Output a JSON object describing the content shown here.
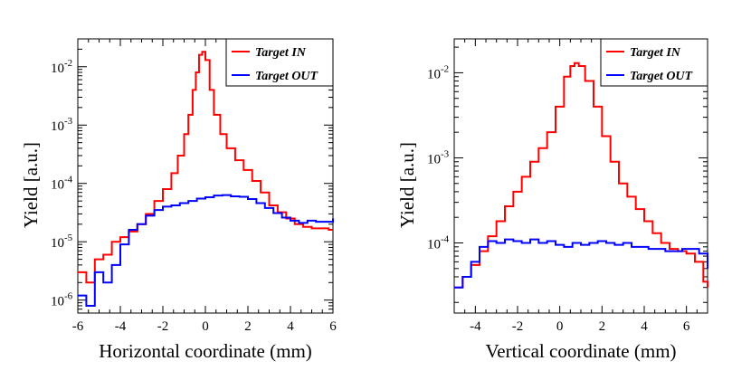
{
  "chart_data": [
    {
      "type": "line",
      "style": "step-histogram",
      "title": "",
      "xlabel": "Horizontal coordinate (mm)",
      "ylabel": "Yield [a.u.]",
      "xlim": [
        -6,
        6
      ],
      "ylim": [
        6e-07,
        0.03
      ],
      "yscale": "log",
      "xticks": [
        -6,
        -4,
        -2,
        0,
        2,
        4,
        6
      ],
      "yticks": [
        {
          "value": 1e-06,
          "base": "10",
          "exp": "-6"
        },
        {
          "value": 1e-05,
          "base": "10",
          "exp": "-5"
        },
        {
          "value": 0.0001,
          "base": "10",
          "exp": "-4"
        },
        {
          "value": 0.001,
          "base": "10",
          "exp": "-3"
        },
        {
          "value": 0.01,
          "base": "10",
          "exp": "-2"
        }
      ],
      "legend_position": "top-right",
      "series": [
        {
          "name": "Target IN",
          "color": "#ff0000",
          "x": [
            -6.0,
            -5.6,
            -5.2,
            -4.8,
            -4.4,
            -4.0,
            -3.6,
            -3.2,
            -2.8,
            -2.4,
            -2.0,
            -1.6,
            -1.3,
            -1.0,
            -0.8,
            -0.6,
            -0.45,
            -0.3,
            -0.15,
            0.0,
            0.2,
            0.4,
            0.7,
            1.0,
            1.4,
            1.8,
            2.2,
            2.6,
            3.0,
            3.4,
            3.8,
            4.2,
            4.6,
            5.0,
            5.4,
            5.8,
            6.0
          ],
          "y": [
            3e-06,
            2e-06,
            5e-06,
            6e-06,
            1e-05,
            1.2e-05,
            1.5e-05,
            2e-05,
            3e-05,
            5e-05,
            8e-05,
            0.00015,
            0.0003,
            0.0007,
            0.0015,
            0.004,
            0.008,
            0.016,
            0.018,
            0.013,
            0.004,
            0.0015,
            0.0007,
            0.0004,
            0.00025,
            0.00017,
            0.00011,
            7e-05,
            4.2e-05,
            3.2e-05,
            2.5e-05,
            2e-05,
            1.8e-05,
            1.7e-05,
            1.7e-05,
            1.6e-05,
            1.6e-05
          ]
        },
        {
          "name": "Target OUT",
          "color": "#0000ff",
          "x": [
            -6.0,
            -5.6,
            -5.2,
            -4.8,
            -4.4,
            -4.0,
            -3.6,
            -3.2,
            -2.8,
            -2.4,
            -2.0,
            -1.6,
            -1.2,
            -0.8,
            -0.4,
            0.0,
            0.4,
            0.8,
            1.2,
            1.6,
            2.0,
            2.4,
            2.8,
            3.2,
            3.6,
            4.0,
            4.4,
            4.8,
            5.2,
            5.6,
            6.0
          ],
          "y": [
            1.2e-06,
            8e-07,
            3e-06,
            2e-06,
            4e-06,
            9e-06,
            1.6e-05,
            2e-05,
            2.8e-05,
            3.5e-05,
            4e-05,
            4.2e-05,
            4.6e-05,
            5e-05,
            5.5e-05,
            5.8e-05,
            6.2e-05,
            6.3e-05,
            6e-05,
            5.9e-05,
            5.4e-05,
            4.6e-05,
            3.8e-05,
            3.1e-05,
            2.6e-05,
            2.3e-05,
            2.1e-05,
            2.3e-05,
            2.2e-05,
            2.2e-05,
            2.5e-05
          ]
        }
      ]
    },
    {
      "type": "line",
      "style": "step-histogram",
      "title": "",
      "xlabel": "Vertical coordinate (mm)",
      "ylabel": "Yield [a.u.]",
      "xlim": [
        -5,
        7
      ],
      "ylim": [
        1.5e-05,
        0.025
      ],
      "yscale": "log",
      "xticks": [
        -4,
        -2,
        0,
        2,
        4,
        6
      ],
      "yticks": [
        {
          "value": 0.0001,
          "base": "10",
          "exp": "-4"
        },
        {
          "value": 0.001,
          "base": "10",
          "exp": "-3"
        },
        {
          "value": 0.01,
          "base": "10",
          "exp": "-2"
        }
      ],
      "legend_position": "top-right",
      "series": [
        {
          "name": "Target IN",
          "color": "#ff0000",
          "x": [
            -5.0,
            -4.6,
            -4.2,
            -3.8,
            -3.4,
            -3.0,
            -2.6,
            -2.2,
            -1.8,
            -1.4,
            -1.0,
            -0.6,
            -0.2,
            0.2,
            0.5,
            0.7,
            0.9,
            1.2,
            1.6,
            2.0,
            2.4,
            2.8,
            3.2,
            3.6,
            4.0,
            4.4,
            4.8,
            5.2,
            5.6,
            6.0,
            6.4,
            6.8,
            7.0
          ],
          "y": [
            3e-05,
            4e-05,
            5.5e-05,
            8e-05,
            0.00012,
            0.00018,
            0.00027,
            0.0004,
            0.0006,
            0.0009,
            0.0013,
            0.002,
            0.004,
            0.009,
            0.012,
            0.013,
            0.012,
            0.008,
            0.004,
            0.0018,
            0.0009,
            0.0005,
            0.00035,
            0.00025,
            0.00018,
            0.00013,
            0.0001,
            8.5e-05,
            8e-05,
            7.5e-05,
            6e-05,
            3.5e-05,
            3e-05
          ]
        },
        {
          "name": "Target OUT",
          "color": "#0000ff",
          "x": [
            -5.0,
            -4.6,
            -4.2,
            -3.8,
            -3.4,
            -3.0,
            -2.6,
            -2.2,
            -1.8,
            -1.4,
            -1.0,
            -0.6,
            -0.2,
            0.2,
            0.6,
            1.0,
            1.4,
            1.8,
            2.2,
            2.6,
            3.0,
            3.4,
            3.8,
            4.2,
            4.6,
            5.0,
            5.4,
            5.8,
            6.2,
            6.6,
            7.0
          ],
          "y": [
            3e-05,
            4e-05,
            6e-05,
            9e-05,
            0.000105,
            0.0001,
            0.00011,
            0.000105,
            0.0001,
            0.00011,
            0.0001,
            0.000105,
            9.5e-05,
            9e-05,
            0.0001,
            9.5e-05,
            0.0001,
            0.000105,
            0.0001,
            9.5e-05,
            0.0001,
            9e-05,
            9e-05,
            8.5e-05,
            8.5e-05,
            8e-05,
            8e-05,
            8.5e-05,
            8.5e-05,
            7.5e-05,
            5e-05
          ]
        }
      ]
    }
  ]
}
